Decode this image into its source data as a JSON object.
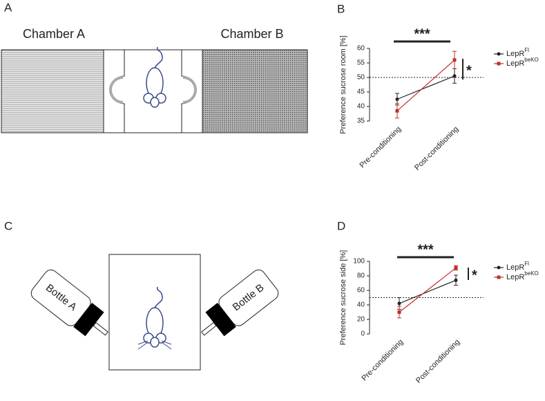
{
  "panel_labels": [
    "A",
    "B",
    "C",
    "D"
  ],
  "diagram_a": {
    "left_label": "Chamber A",
    "right_label": "Chamber B"
  },
  "diagram_c": {
    "left_label": "Bottle A",
    "right_label": "Bottle B"
  },
  "chart_data": [
    {
      "type": "line",
      "ylabel": "Preference sucrose room [%]",
      "categories": [
        "Pre-conditioning",
        "Post-conditioning"
      ],
      "ylim": [
        35,
        60
      ],
      "yticks": [
        35,
        40,
        45,
        50,
        55,
        60
      ],
      "reference_line": 50,
      "series": [
        {
          "name": "LepR",
          "name_sup": "Fl",
          "color": "#222222",
          "values": [
            42.5,
            50.5
          ],
          "errors": [
            2,
            2.5
          ]
        },
        {
          "name": "LepR",
          "name_sup": "beKO",
          "color": "#c0302a",
          "values": [
            38.5,
            56
          ],
          "errors": [
            2.5,
            3
          ]
        }
      ],
      "annotations": [
        "***",
        "*"
      ],
      "legend": "right"
    },
    {
      "type": "line",
      "ylabel": "Preference sucrose side [%]",
      "categories": [
        "Pre-conditioning",
        "Post-conditioning"
      ],
      "ylim": [
        0,
        100
      ],
      "yticks": [
        0,
        20,
        40,
        60,
        80,
        100
      ],
      "reference_line": 50,
      "series": [
        {
          "name": "LepR",
          "name_sup": "Fl",
          "color": "#222222",
          "values": [
            42,
            74
          ],
          "errors": [
            8,
            7
          ]
        },
        {
          "name": "LepR",
          "name_sup": "beKO",
          "color": "#c0302a",
          "values": [
            30,
            91
          ],
          "errors": [
            8,
            3
          ]
        }
      ],
      "annotations": [
        "***",
        "*"
      ],
      "legend": "right"
    }
  ]
}
